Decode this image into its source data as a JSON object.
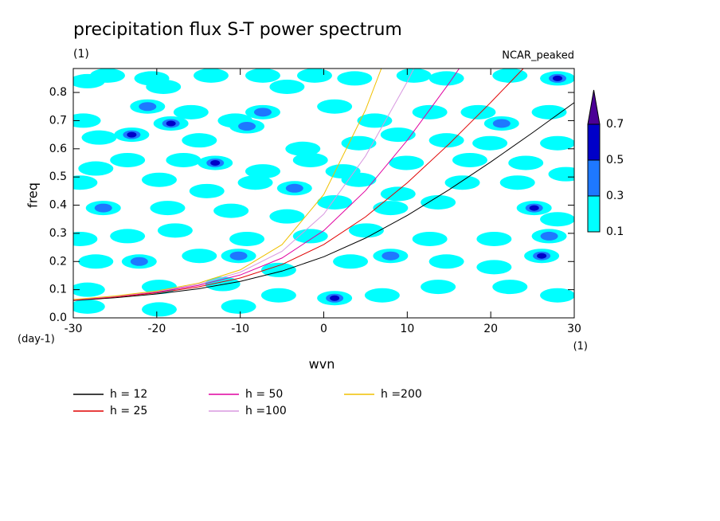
{
  "chart_data": {
    "type": "contour",
    "title": "precipitation flux S-T power spectrum",
    "subtitle": "(1)",
    "annotation": "NCAR_peaked",
    "xlabel": "wvn",
    "ylabel": "freq",
    "xunit": "(1)",
    "yunit": "(day-1)",
    "xlim": [
      -30,
      30
    ],
    "ylim": [
      0,
      0.885
    ],
    "xticks": [
      -30,
      -20,
      -10,
      0,
      10,
      20,
      30
    ],
    "yticks": [
      {
        "value": 0,
        "label": "0.0"
      },
      0.1,
      0.2,
      0.3,
      0.4,
      0.5,
      0.6,
      0.7,
      0.8
    ],
    "x": [
      -30,
      -25,
      -20,
      -15,
      -10,
      -5,
      0,
      5,
      10,
      15,
      20,
      25,
      30
    ],
    "series": [
      {
        "name": "h = 12",
        "color": "#000000",
        "values": [
          0.0615,
          0.0715,
          0.0849,
          0.1033,
          0.1293,
          0.166,
          0.2168,
          0.2831,
          0.3635,
          0.4546,
          0.5533,
          0.657,
          0.764
        ]
      },
      {
        "name": "h = 25",
        "color": "#e00000",
        "values": [
          0.063,
          0.0738,
          0.0887,
          0.1099,
          0.1414,
          0.1893,
          0.2604,
          0.3583,
          0.4794,
          0.6169,
          0.7647,
          0.9188,
          null
        ]
      },
      {
        "name": "h = 50",
        "color": "#e000a0",
        "values": [
          0.064,
          0.0755,
          0.0915,
          0.1152,
          0.1522,
          0.2124,
          0.3097,
          0.4515,
          0.6303,
          0.8324,
          1.0477,
          null,
          null
        ]
      },
      {
        "name": "h =100",
        "color": "#d898e0",
        "values": [
          0.0648,
          0.0768,
          0.0938,
          0.1196,
          0.1619,
          0.2362,
          0.3683,
          0.5742,
          0.8379,
          1.1336,
          null,
          null,
          null
        ]
      },
      {
        "name": "h =200",
        "color": "#f0c000",
        "values": [
          0.0654,
          0.0777,
          0.0955,
          0.1232,
          0.1703,
          0.2599,
          0.4379,
          0.7379,
          1.1262,
          null,
          null,
          null,
          null
        ]
      }
    ],
    "contour": {
      "levels": [
        0.1,
        0.3,
        0.5,
        0.7
      ],
      "colors": [
        "#00ffff",
        "#1e78ff",
        "#0000c8",
        "#4b0096"
      ],
      "patches": [
        [
          -28.3,
          0.84,
          0.1
        ],
        [
          -25.9,
          0.86,
          0.1
        ],
        [
          -20.6,
          0.85,
          0.1
        ],
        [
          -19.2,
          0.82,
          0.1
        ],
        [
          -13.5,
          0.86,
          0.1
        ],
        [
          -7.3,
          0.86,
          0.1
        ],
        [
          -4.4,
          0.82,
          0.1
        ],
        [
          -1.1,
          0.86,
          0.1
        ],
        [
          3.7,
          0.85,
          0.1
        ],
        [
          10.8,
          0.86,
          0.1
        ],
        [
          14.7,
          0.85,
          0.1
        ],
        [
          22.3,
          0.86,
          0.1
        ],
        [
          28.0,
          0.85,
          0.5
        ],
        [
          -21.1,
          0.75,
          0.3
        ],
        [
          -28.8,
          0.7,
          0.1
        ],
        [
          -18.3,
          0.69,
          0.5
        ],
        [
          -15.9,
          0.73,
          0.1
        ],
        [
          -10.6,
          0.7,
          0.1
        ],
        [
          -7.3,
          0.73,
          0.3
        ],
        [
          1.3,
          0.75,
          0.1
        ],
        [
          6.1,
          0.7,
          0.1
        ],
        [
          12.7,
          0.73,
          0.1
        ],
        [
          18.5,
          0.73,
          0.1
        ],
        [
          21.3,
          0.69,
          0.3
        ],
        [
          27.0,
          0.73,
          0.1
        ],
        [
          -26.9,
          0.64,
          0.1
        ],
        [
          -23.0,
          0.65,
          0.5
        ],
        [
          -14.9,
          0.63,
          0.1
        ],
        [
          -9.2,
          0.68,
          0.3
        ],
        [
          -2.5,
          0.6,
          0.1
        ],
        [
          4.2,
          0.62,
          0.1
        ],
        [
          8.9,
          0.65,
          0.1
        ],
        [
          14.7,
          0.63,
          0.1
        ],
        [
          19.9,
          0.62,
          0.1
        ],
        [
          28.0,
          0.62,
          0.1
        ],
        [
          -27.3,
          0.53,
          0.1
        ],
        [
          -23.5,
          0.56,
          0.1
        ],
        [
          -16.8,
          0.56,
          0.1
        ],
        [
          -13.0,
          0.55,
          0.5
        ],
        [
          -7.3,
          0.52,
          0.1
        ],
        [
          -1.6,
          0.56,
          0.1
        ],
        [
          2.3,
          0.52,
          0.1
        ],
        [
          9.9,
          0.55,
          0.1
        ],
        [
          17.5,
          0.56,
          0.1
        ],
        [
          24.2,
          0.55,
          0.1
        ],
        [
          29.0,
          0.51,
          0.1
        ],
        [
          -29.2,
          0.48,
          0.1
        ],
        [
          -19.7,
          0.49,
          0.1
        ],
        [
          -14.0,
          0.45,
          0.1
        ],
        [
          -8.2,
          0.48,
          0.1
        ],
        [
          -3.5,
          0.46,
          0.3
        ],
        [
          4.2,
          0.49,
          0.1
        ],
        [
          8.9,
          0.44,
          0.1
        ],
        [
          16.6,
          0.48,
          0.1
        ],
        [
          23.2,
          0.48,
          0.1
        ],
        [
          -26.4,
          0.39,
          0.3
        ],
        [
          -18.7,
          0.39,
          0.1
        ],
        [
          -11.1,
          0.38,
          0.1
        ],
        [
          -4.4,
          0.36,
          0.1
        ],
        [
          1.3,
          0.41,
          0.1
        ],
        [
          8.0,
          0.39,
          0.1
        ],
        [
          13.7,
          0.41,
          0.1
        ],
        [
          25.2,
          0.39,
          0.5
        ],
        [
          28.0,
          0.35,
          0.1
        ],
        [
          -29.2,
          0.28,
          0.1
        ],
        [
          -23.5,
          0.29,
          0.1
        ],
        [
          -17.8,
          0.31,
          0.1
        ],
        [
          -9.2,
          0.28,
          0.1
        ],
        [
          -1.6,
          0.29,
          0.1
        ],
        [
          5.1,
          0.31,
          0.1
        ],
        [
          12.7,
          0.28,
          0.1
        ],
        [
          20.4,
          0.28,
          0.1
        ],
        [
          27.0,
          0.29,
          0.3
        ],
        [
          -27.3,
          0.2,
          0.1
        ],
        [
          -22.1,
          0.2,
          0.3
        ],
        [
          -14.9,
          0.22,
          0.1
        ],
        [
          -10.2,
          0.22,
          0.3
        ],
        [
          -5.4,
          0.17,
          0.1
        ],
        [
          3.2,
          0.2,
          0.1
        ],
        [
          8.0,
          0.22,
          0.3
        ],
        [
          14.7,
          0.2,
          0.1
        ],
        [
          20.4,
          0.18,
          0.1
        ],
        [
          26.1,
          0.22,
          0.5
        ],
        [
          -28.3,
          0.1,
          0.1
        ],
        [
          -19.7,
          0.11,
          0.1
        ],
        [
          -12.1,
          0.12,
          0.1
        ],
        [
          -5.4,
          0.08,
          0.1
        ],
        [
          1.3,
          0.07,
          0.5
        ],
        [
          7.0,
          0.08,
          0.1
        ],
        [
          13.7,
          0.11,
          0.1
        ],
        [
          22.3,
          0.11,
          0.1
        ],
        [
          28.0,
          0.08,
          0.1
        ],
        [
          -28.3,
          0.04,
          0.1
        ],
        [
          -19.7,
          0.03,
          0.1
        ],
        [
          -10.2,
          0.04,
          0.1
        ]
      ]
    }
  }
}
